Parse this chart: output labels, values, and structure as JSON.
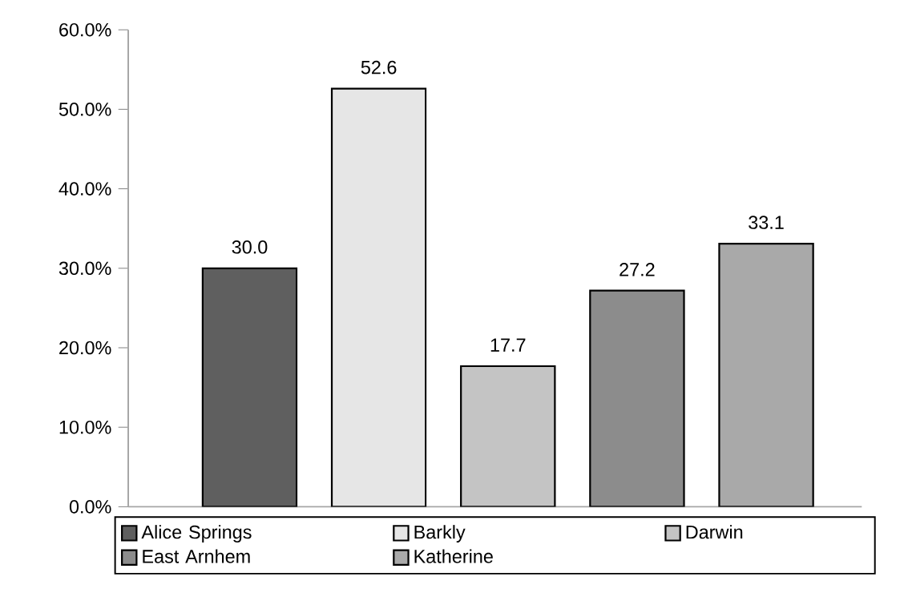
{
  "chart_data": {
    "type": "bar",
    "categories": [
      null,
      null,
      null,
      null,
      null
    ],
    "series": [
      {
        "name": "Alice Springs",
        "color": "#5f5f5f",
        "values": [
          30.0,
          null,
          null,
          null,
          null
        ],
        "value_labels": [
          "30.0",
          null,
          null,
          null,
          null
        ]
      },
      {
        "name": "Barkly",
        "color": "#e6e6e6",
        "values": [
          null,
          52.6,
          null,
          null,
          null
        ],
        "value_labels": [
          null,
          "52.6",
          null,
          null,
          null
        ]
      },
      {
        "name": "Darwin",
        "color": "#c4c4c4",
        "values": [
          null,
          null,
          17.7,
          null,
          null
        ],
        "value_labels": [
          null,
          null,
          "17.7",
          null,
          null
        ]
      },
      {
        "name": "East Arnhem",
        "color": "#8c8c8c",
        "values": [
          null,
          null,
          null,
          27.2,
          null
        ],
        "value_labels": [
          null,
          null,
          null,
          "27.2",
          null
        ]
      },
      {
        "name": "Katherine",
        "color": "#a9a9a9",
        "values": [
          null,
          null,
          null,
          null,
          33.1
        ],
        "value_labels": [
          null,
          null,
          null,
          null,
          "33.1"
        ]
      }
    ],
    "ylim": [
      0,
      60
    ],
    "yticks": [
      {
        "value": 0,
        "label": "0.0%"
      },
      {
        "value": 10,
        "label": "10.0%"
      },
      {
        "value": 20,
        "label": "20.0%"
      },
      {
        "value": 30,
        "label": "30.0%"
      },
      {
        "value": 40,
        "label": "40.0%"
      },
      {
        "value": 50,
        "label": "50.0%"
      },
      {
        "value": 60,
        "label": "60.0%"
      }
    ],
    "legend": "bottom",
    "tick_labels": "y"
  }
}
